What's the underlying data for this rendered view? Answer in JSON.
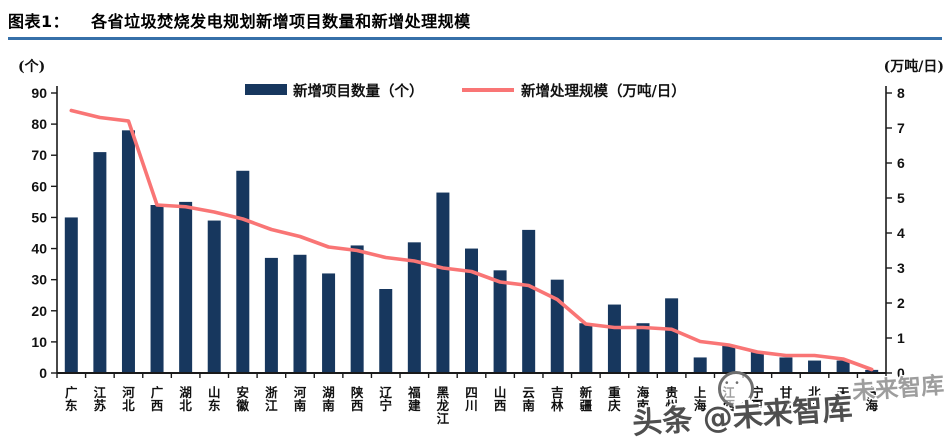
{
  "header": {
    "label": "图表1：",
    "title": "各省垃圾焚烧发电规划新增项目数量和新增处理规模"
  },
  "chart_data": {
    "type": "bar",
    "subtype": "bar-line-combo-dual-axis",
    "title": "各省垃圾焚烧发电规划新增项目数量和新增处理规模",
    "categories": [
      "广东",
      "江苏",
      "河北",
      "广西",
      "湖北",
      "山东",
      "安徽",
      "浙江",
      "河南",
      "湖南",
      "陕西",
      "辽宁",
      "福建",
      "黑龙江",
      "四川",
      "山西",
      "云南",
      "吉林",
      "新疆",
      "重庆",
      "海南",
      "贵州",
      "上海",
      "江西",
      "宁夏",
      "甘肃",
      "北京",
      "天津",
      "青海"
    ],
    "series": [
      {
        "name": "新增项目数量（个）",
        "type": "bar",
        "axis": "left",
        "color": "#17375E",
        "values": [
          50,
          71,
          78,
          54,
          55,
          49,
          65,
          37,
          38,
          32,
          41,
          27,
          42,
          58,
          40,
          33,
          46,
          30,
          16,
          22,
          16,
          24,
          5,
          9,
          7,
          5,
          4,
          4,
          1
        ]
      },
      {
        "name": "新增处理规模（万吨/日）",
        "type": "line",
        "axis": "right",
        "color": "#F97575",
        "values": [
          7.5,
          7.3,
          7.2,
          4.8,
          4.75,
          4.6,
          4.4,
          4.1,
          3.9,
          3.6,
          3.5,
          3.3,
          3.2,
          3.0,
          2.9,
          2.6,
          2.5,
          2.1,
          1.4,
          1.3,
          1.3,
          1.25,
          0.9,
          0.8,
          0.6,
          0.5,
          0.5,
          0.4,
          0.1
        ]
      }
    ],
    "left_axis": {
      "unit": "(个)",
      "min": 0,
      "max": 90,
      "step": 10,
      "ticks": [
        "0",
        "10",
        "20",
        "30",
        "40",
        "50",
        "60",
        "70",
        "80",
        "90"
      ]
    },
    "right_axis": {
      "unit": "(万吨/日)",
      "min": 0,
      "max": 8,
      "step": 1,
      "ticks": [
        "0",
        "1",
        "2",
        "3",
        "4",
        "5",
        "6",
        "7",
        "8"
      ]
    },
    "legend": [
      {
        "label": "新增项目数量（个）",
        "swatch": "bar",
        "color": "#17375E"
      },
      {
        "label": "新增处理规模（万吨/日）",
        "swatch": "line",
        "color": "#F97575"
      }
    ],
    "grid": false,
    "legend_position": "top-center"
  },
  "watermark": {
    "ghost": "未来智库",
    "main": "头条 @未来智库"
  },
  "colors": {
    "bar": "#17375E",
    "line": "#F97575",
    "header_rule": "#3670A9",
    "axis": "#1a1a1a"
  }
}
